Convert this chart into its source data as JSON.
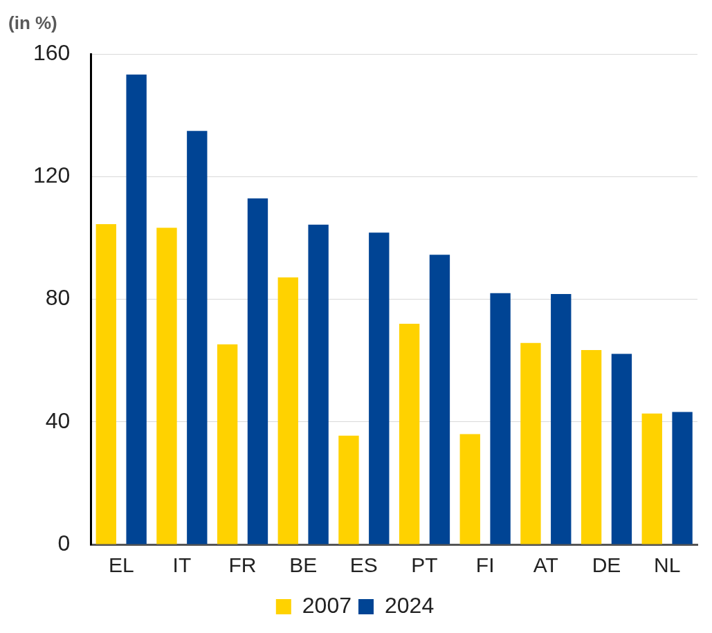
{
  "chart_data": {
    "type": "bar",
    "ylabel": "(in %)",
    "categories": [
      "EL",
      "IT",
      "FR",
      "BE",
      "ES",
      "PT",
      "FI",
      "AT",
      "DE",
      "NL"
    ],
    "series": [
      {
        "name": "2007",
        "color": "#ffd200",
        "values": [
          104.5,
          103.3,
          65.3,
          87.1,
          35.5,
          72,
          36,
          65.7,
          63.4,
          42.7
        ]
      },
      {
        "name": "2024",
        "color": "#004494",
        "values": [
          153.3,
          134.9,
          112.9,
          104.3,
          101.7,
          94.5,
          82,
          81.7,
          62.2,
          43.2
        ]
      }
    ],
    "ylim": [
      0,
      160
    ],
    "yticks": [
      0,
      40,
      80,
      120,
      160
    ],
    "grid": "y",
    "legend": "bottom"
  }
}
